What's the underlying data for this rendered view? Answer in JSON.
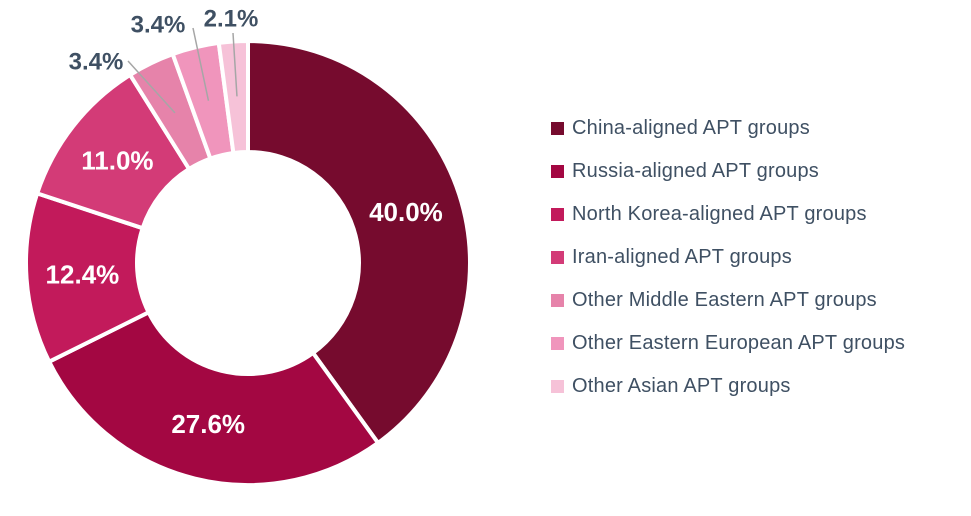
{
  "chart_data": {
    "type": "pie",
    "subtype": "donut",
    "title": "",
    "legend_position": "right",
    "start_angle_deg": 0,
    "direction": "clockwise",
    "slices": [
      {
        "label": "China-aligned APT groups",
        "value": 40.0,
        "pct": "40.0%",
        "color": "#760b2e",
        "label_placement": "inside"
      },
      {
        "label": "Russia-aligned APT groups",
        "value": 27.6,
        "pct": "27.6%",
        "color": "#a30742",
        "label_placement": "inside"
      },
      {
        "label": "North Korea-aligned APT groups",
        "value": 12.4,
        "pct": "12.4%",
        "color": "#c21a5b",
        "label_placement": "inside"
      },
      {
        "label": "Iran-aligned APT groups",
        "value": 11.0,
        "pct": "11.0%",
        "color": "#d33b77",
        "label_placement": "inside"
      },
      {
        "label": "Other Middle Eastern APT groups",
        "value": 3.4,
        "pct": "3.4%",
        "color": "#e683aa",
        "label_placement": "outside"
      },
      {
        "label": "Other Eastern European APT groups",
        "value": 3.4,
        "pct": "3.4%",
        "color": "#f095bc",
        "label_placement": "outside"
      },
      {
        "label": "Other Asian APT groups",
        "value": 2.1,
        "pct": "2.1%",
        "color": "#f6c2d8",
        "label_placement": "outside"
      }
    ],
    "colors": {
      "background": "#ffffff",
      "value_label_inside": "#ffffff",
      "value_label_outside": "#3f5063",
      "legend_text": "#3f5063",
      "leader_line": "#a6a6a6",
      "slice_separator": "#ffffff"
    }
  }
}
